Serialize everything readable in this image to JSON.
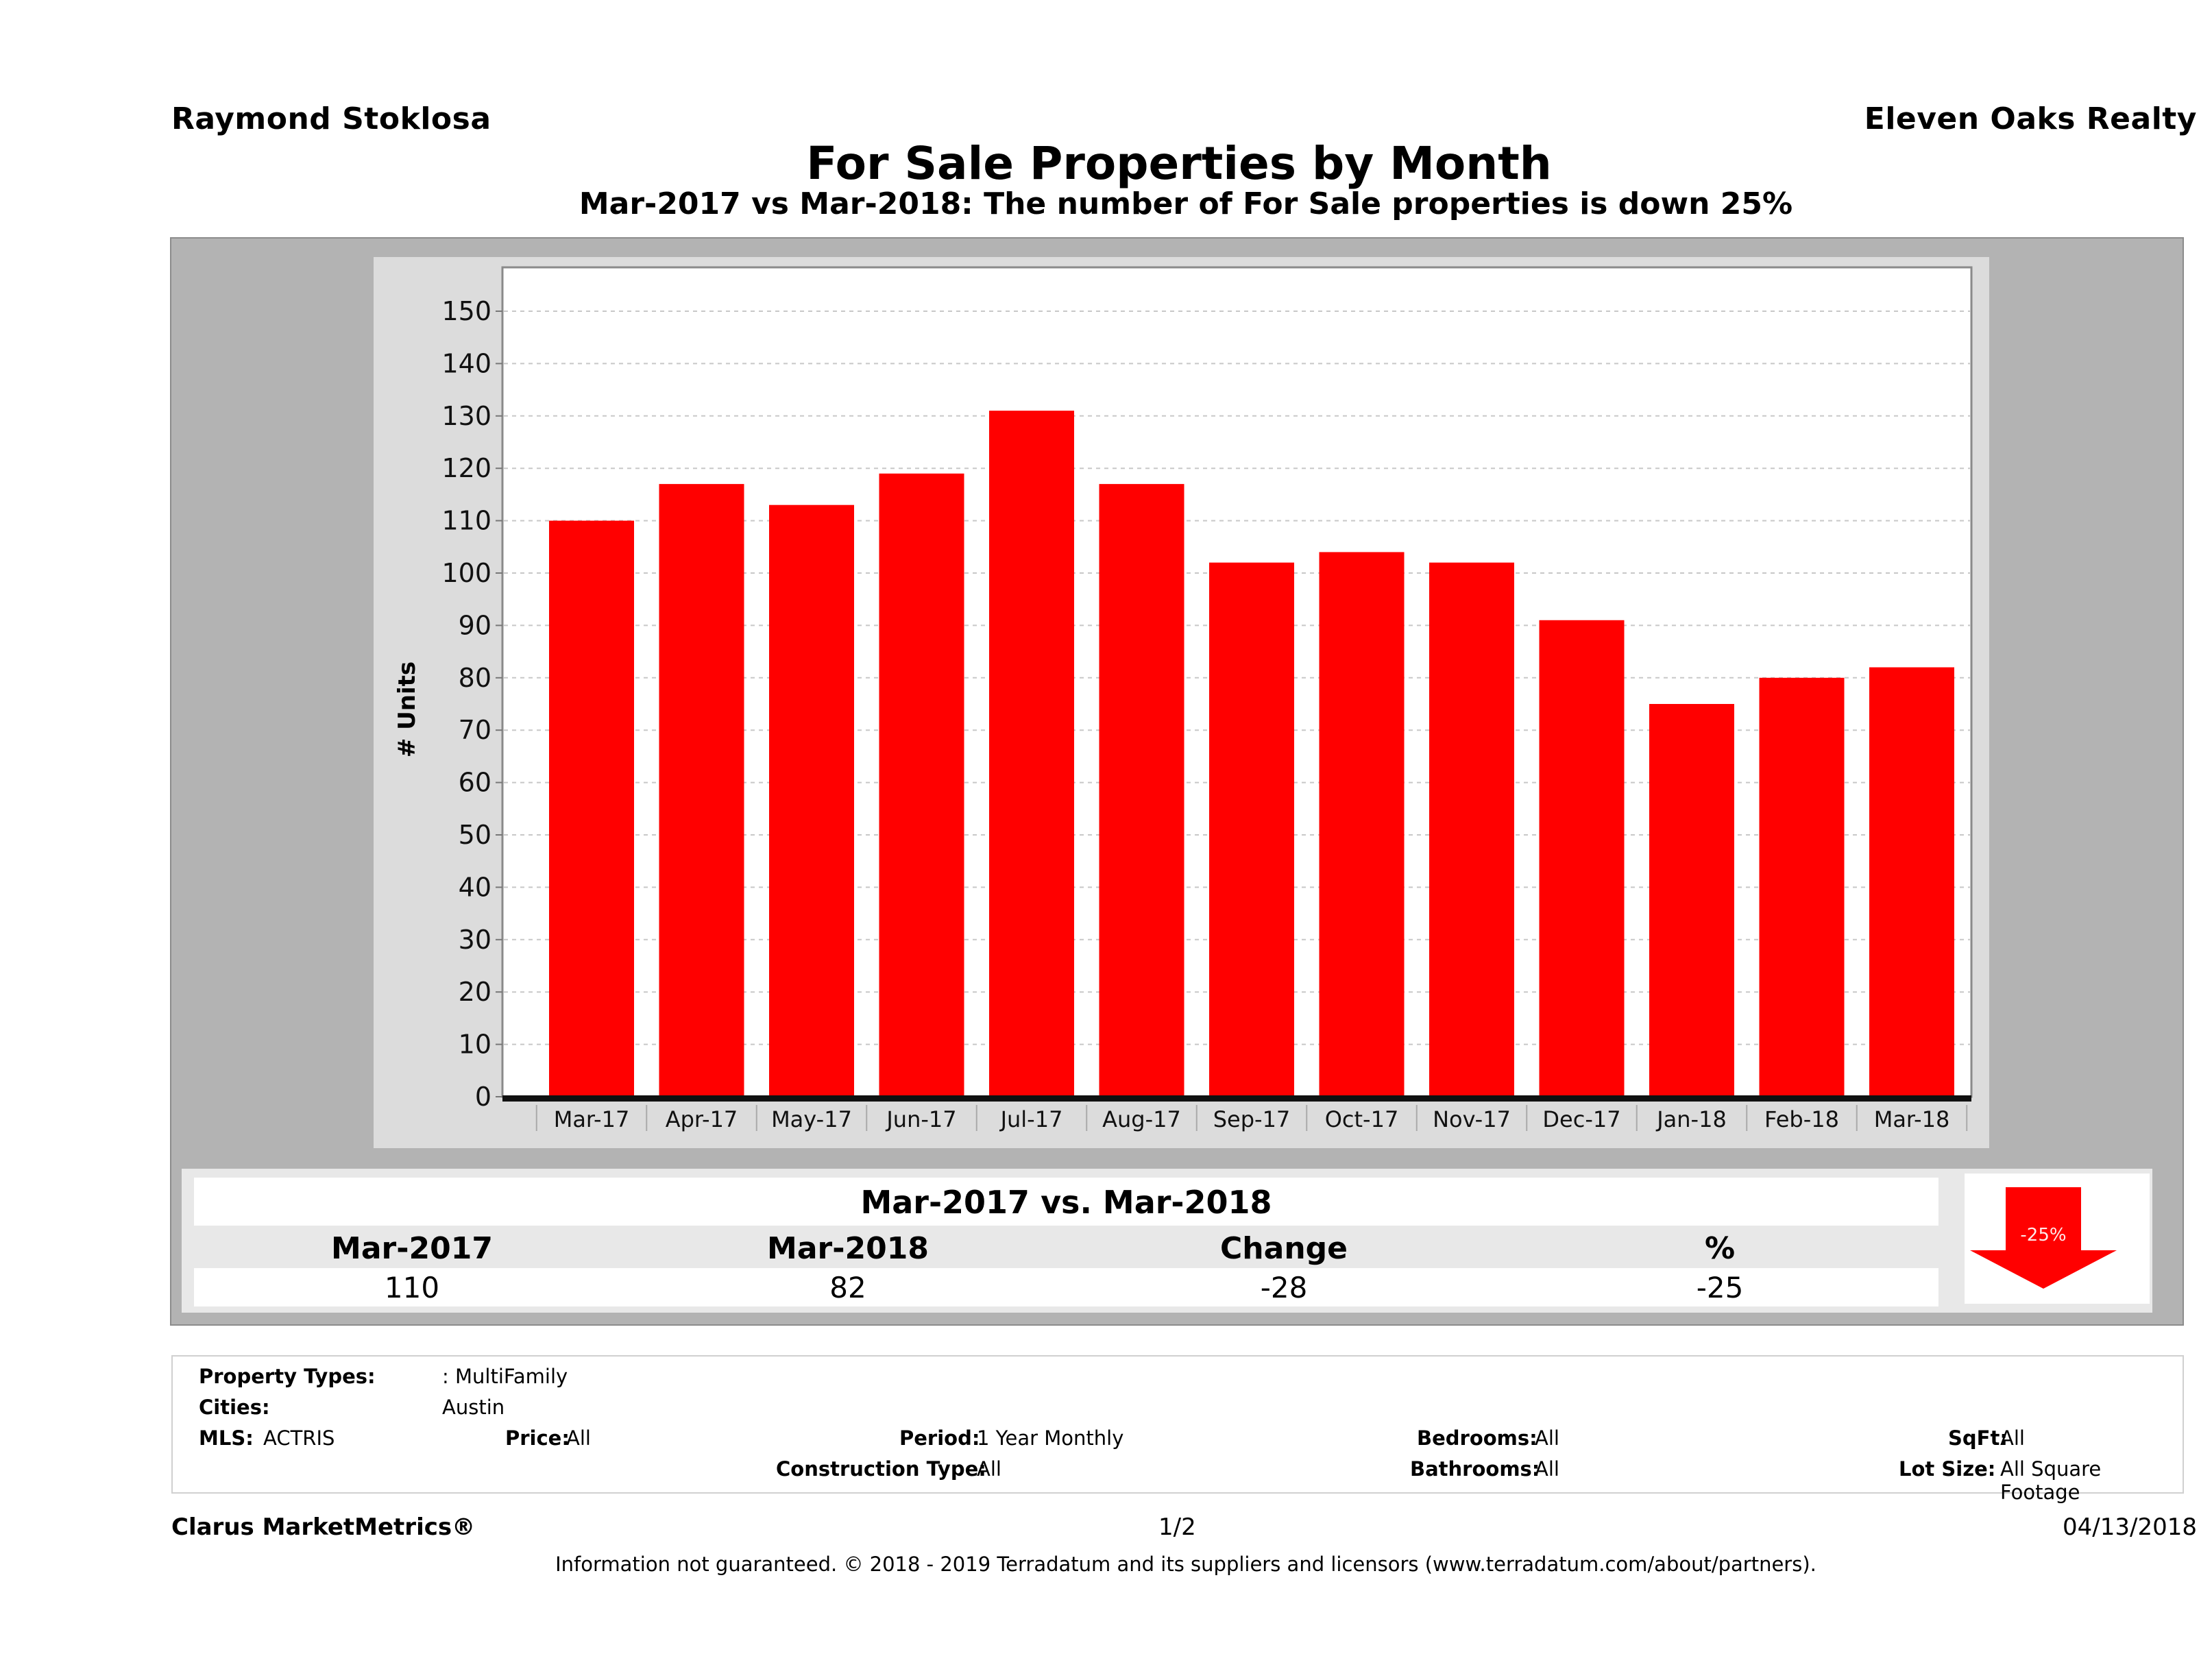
{
  "header": {
    "agent": "Raymond Stoklosa",
    "brokerage": "Eleven Oaks Realty",
    "title": "For Sale Properties by Month",
    "subtitle": "Mar-2017 vs Mar-2018: The number of For Sale  properties is down 25%"
  },
  "chart_data": {
    "type": "bar",
    "title": "For Sale Properties by Month",
    "xlabel": "",
    "ylabel": "# Units",
    "ylim": [
      0,
      155
    ],
    "yticks": [
      0,
      10,
      20,
      30,
      40,
      50,
      60,
      70,
      80,
      90,
      100,
      110,
      120,
      130,
      140,
      150
    ],
    "grid": true,
    "categories": [
      "Mar-17",
      "Apr-17",
      "May-17",
      "Jun-17",
      "Jul-17",
      "Aug-17",
      "Sep-17",
      "Oct-17",
      "Nov-17",
      "Dec-17",
      "Jan-18",
      "Feb-18",
      "Mar-18"
    ],
    "series": [
      {
        "name": "For Sale Properties",
        "color": "#ff0000",
        "values": [
          110,
          117,
          113,
          119,
          131,
          117,
          102,
          104,
          102,
          91,
          75,
          80,
          82
        ]
      }
    ]
  },
  "summary": {
    "title": "Mar-2017 vs. Mar-2018",
    "headers": [
      "Mar-2017",
      "Mar-2018",
      "Change",
      "%"
    ],
    "values": [
      "110",
      "82",
      "-28",
      "-25"
    ],
    "badge": {
      "label": "-25%",
      "direction": "down",
      "color": "#ff0000"
    }
  },
  "details": {
    "property_types_label": "Property Types:",
    "property_types_value": ": MultiFamily",
    "cities_label": "Cities:",
    "cities_value": "Austin",
    "mls_label": "MLS:",
    "mls_value": "ACTRIS",
    "price_label": "Price:",
    "price_value": "All",
    "period_label": "Period:",
    "period_value": "1 Year Monthly",
    "construction_label": "Construction Type:",
    "construction_value": "All",
    "bedrooms_label": "Bedrooms:",
    "bedrooms_value": "All",
    "bathrooms_label": "Bathrooms:",
    "bathrooms_value": "All",
    "sqft_label": "SqFt:",
    "sqft_value": "All",
    "lotsize_label": "Lot Size:",
    "lotsize_value": "All Square Footage"
  },
  "footer": {
    "product": "Clarus MarketMetrics®",
    "page": "1/2",
    "date": "04/13/2018",
    "disclaimer": "Information not guaranteed. © 2018 - 2019 Terradatum and its suppliers and licensors (www.terradatum.com/about/partners)."
  }
}
